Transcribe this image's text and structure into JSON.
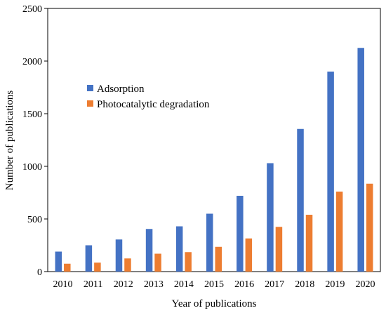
{
  "chart_data": {
    "type": "bar",
    "title": "",
    "xlabel": "Year of publications",
    "ylabel": "Number of publications",
    "ylim": [
      0,
      2500
    ],
    "yticks": [
      0,
      500,
      1000,
      1500,
      2000,
      2500
    ],
    "grid": false,
    "legend_position": "upper-left",
    "categories": [
      "2010",
      "2011",
      "2012",
      "2013",
      "2014",
      "2015",
      "2016",
      "2017",
      "2018",
      "2019",
      "2020"
    ],
    "series": [
      {
        "name": "Adsorption",
        "color": "#4472C4",
        "values": [
          190,
          250,
          305,
          405,
          430,
          550,
          720,
          1030,
          1355,
          1900,
          2125
        ]
      },
      {
        "name": "Photocatalytic degradation",
        "color": "#ED7D31",
        "values": [
          75,
          85,
          125,
          170,
          185,
          235,
          315,
          425,
          540,
          760,
          835
        ]
      }
    ]
  }
}
